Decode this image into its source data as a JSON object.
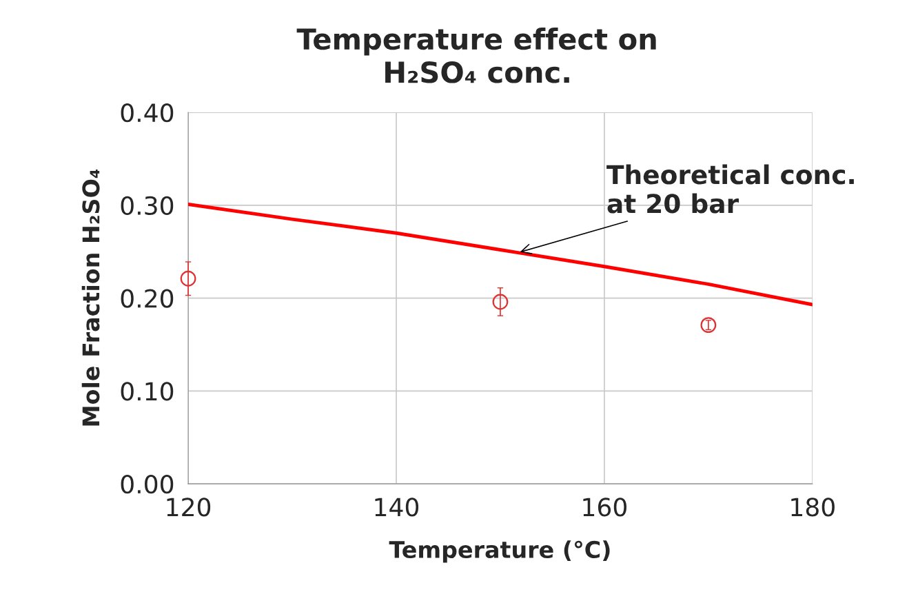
{
  "chart_data": {
    "type": "line",
    "title": "Temperature effect on\nH₂SO₄ conc.",
    "xlabel": "Temperature (°C)",
    "ylabel": "Mole Fraction H₂SO₄",
    "series": [
      {
        "color": "#ff0000",
        "marker": "none",
        "line_style": "solid",
        "x": [
          120,
          130,
          140,
          150,
          160,
          170,
          180
        ],
        "values": [
          0.301,
          0.285,
          0.27,
          0.252,
          0.234,
          0.215,
          0.193
        ]
      },
      {
        "type": "scatter",
        "color": "#e03030",
        "marker": "circle",
        "x": [
          120,
          150,
          170
        ],
        "values": [
          0.221,
          0.196,
          0.171
        ],
        "errors": [
          0.018,
          0.015,
          0.005
        ]
      }
    ],
    "annotations": [
      {
        "text": "Theoretical conc.\nat 20 bar",
        "x": 151.7,
        "y": 0.249
      }
    ],
    "xlim": [
      120,
      180
    ],
    "xticks": [
      120,
      140,
      160,
      180
    ],
    "ylim": [
      0,
      0.4
    ],
    "yticks": [
      {
        "value": 0,
        "label": "0.00"
      },
      {
        "value": 0.1,
        "label": "0.10"
      },
      {
        "value": 0.2,
        "label": "0.20"
      },
      {
        "value": 0.3,
        "label": "0.30"
      },
      {
        "value": 0.4,
        "label": "0.40"
      }
    ],
    "grid": true,
    "legend": false
  }
}
